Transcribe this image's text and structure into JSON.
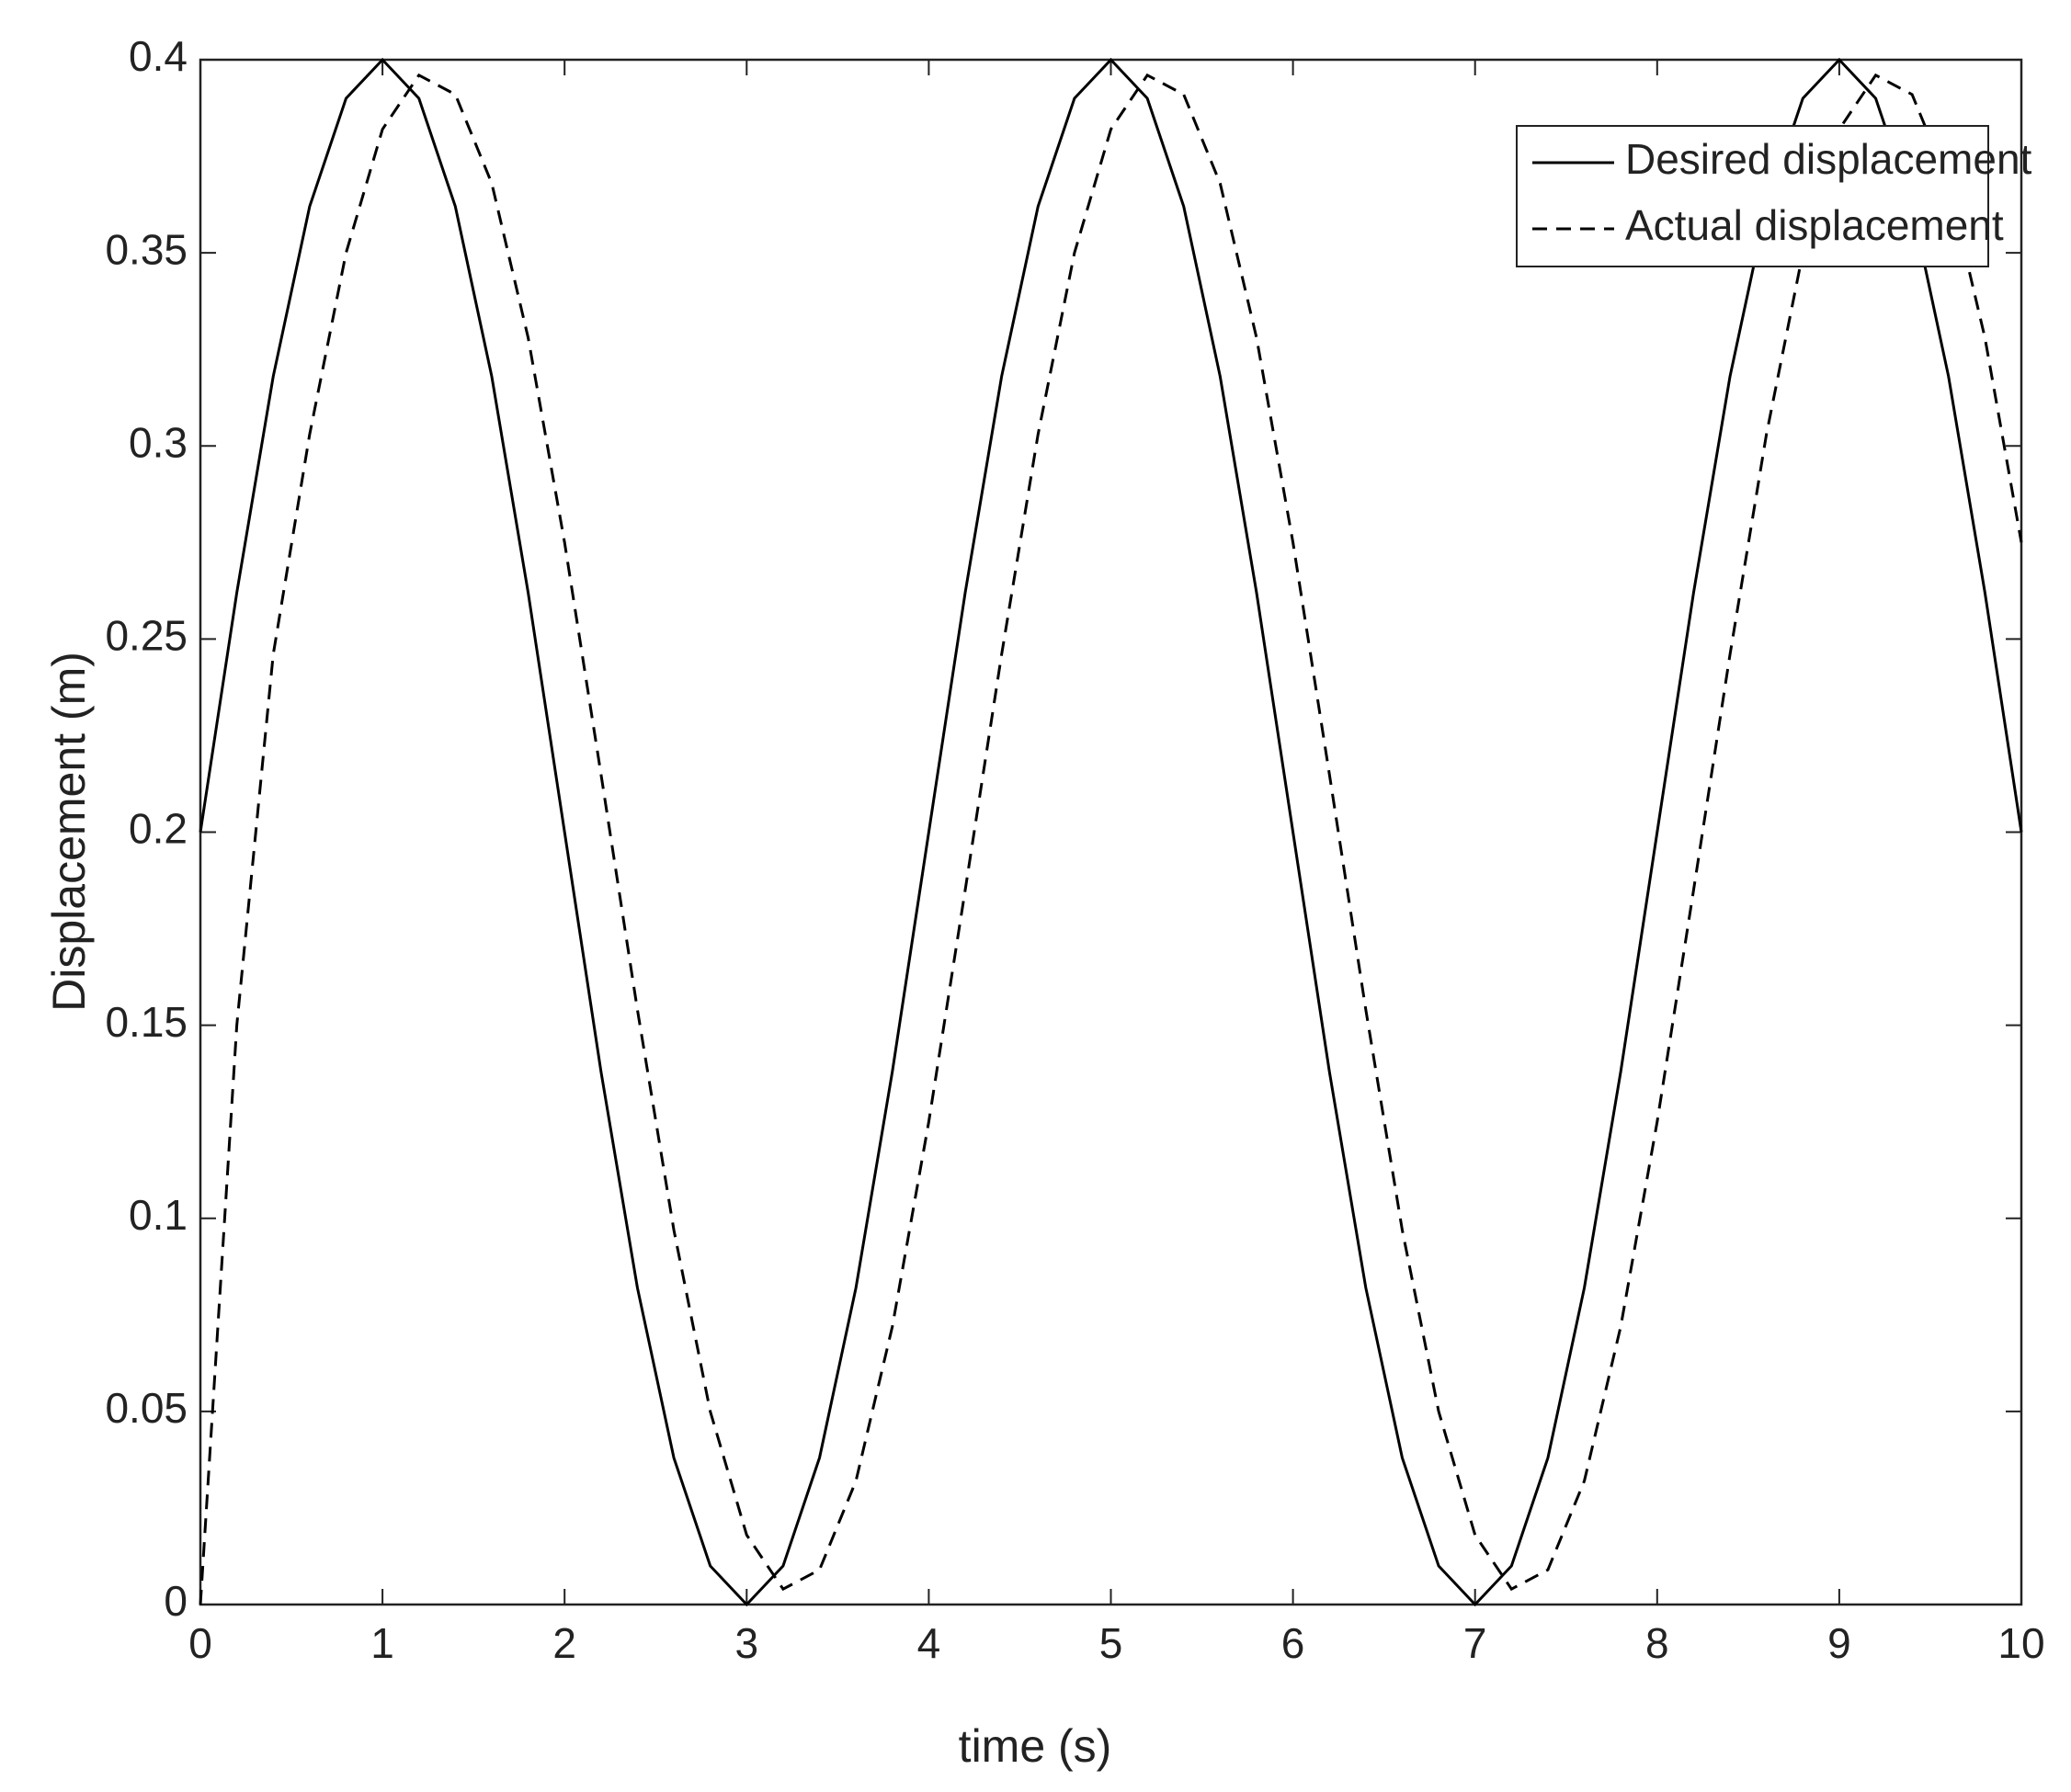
{
  "chart_data": {
    "type": "line",
    "xlabel": "time (s)",
    "ylabel": "Displacement (m)",
    "x": [
      0,
      0.2,
      0.4,
      0.6,
      0.8,
      1.0,
      1.2,
      1.4,
      1.6,
      1.8,
      2.0,
      2.2,
      2.4,
      2.6,
      2.8,
      3.0,
      3.2,
      3.4,
      3.6,
      3.8,
      4.0,
      4.2,
      4.4,
      4.6,
      4.8,
      5.0,
      5.2,
      5.4,
      5.6,
      5.8,
      6.0,
      6.2,
      6.4,
      6.6,
      6.8,
      7.0,
      7.2,
      7.4,
      7.6,
      7.8,
      8.0,
      8.2,
      8.4,
      8.6,
      8.8,
      9.0,
      9.2,
      9.4,
      9.6,
      9.8,
      10.0
    ],
    "series": [
      {
        "name": "Desired displacement",
        "color": "#000000",
        "dash": "solid",
        "values": [
          0.2,
          0.262,
          0.318,
          0.362,
          0.39,
          0.4,
          0.39,
          0.362,
          0.318,
          0.262,
          0.2,
          0.138,
          0.082,
          0.038,
          0.01,
          0,
          0.01,
          0.038,
          0.082,
          0.138,
          0.2,
          0.262,
          0.318,
          0.362,
          0.39,
          0.4,
          0.39,
          0.362,
          0.318,
          0.262,
          0.2,
          0.138,
          0.082,
          0.038,
          0.01,
          0,
          0.01,
          0.038,
          0.082,
          0.138,
          0.2,
          0.262,
          0.318,
          0.362,
          0.39,
          0.4,
          0.39,
          0.362,
          0.318,
          0.262,
          0.2
        ]
      },
      {
        "name": "Actual displacement",
        "color": "#000000",
        "dash": "dashed",
        "values": [
          0,
          0.15,
          0.246,
          0.303,
          0.35,
          0.382,
          0.396,
          0.391,
          0.368,
          0.328,
          0.275,
          0.215,
          0.154,
          0.097,
          0.05,
          0.018,
          0.004,
          0.009,
          0.032,
          0.072,
          0.125,
          0.185,
          0.246,
          0.303,
          0.35,
          0.382,
          0.396,
          0.391,
          0.368,
          0.328,
          0.275,
          0.215,
          0.154,
          0.097,
          0.05,
          0.018,
          0.004,
          0.009,
          0.032,
          0.072,
          0.125,
          0.185,
          0.246,
          0.303,
          0.35,
          0.382,
          0.396,
          0.391,
          0.368,
          0.328,
          0.275
        ]
      }
    ],
    "xlim": [
      0,
      10
    ],
    "xticks": [
      0,
      1,
      2,
      3,
      4,
      5,
      6,
      7,
      8,
      9,
      10
    ],
    "ylim": [
      0,
      0.4
    ],
    "yticks": [
      0,
      0.05,
      0.1,
      0.15,
      0.2,
      0.25,
      0.3,
      0.35,
      0.4
    ],
    "grid": false,
    "legend": "upper right"
  }
}
